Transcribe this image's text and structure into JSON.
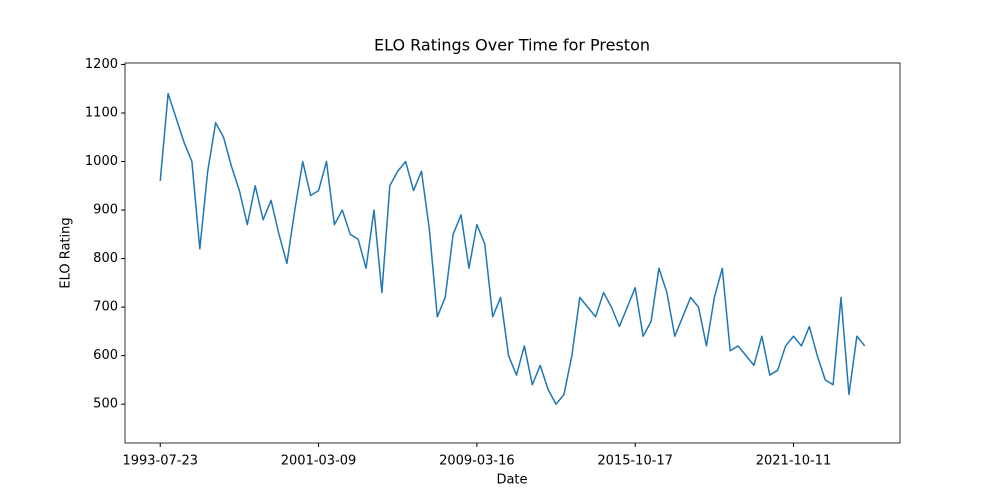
{
  "chart_data": {
    "type": "line",
    "title": "ELO Ratings Over Time for Preston",
    "x_label": "Date",
    "y_label": "ELO Rating",
    "categories": [
      "1993-07-23",
      null,
      null,
      null,
      null,
      null,
      null,
      null,
      null,
      null,
      null,
      null,
      null,
      null,
      null,
      null,
      null,
      null,
      null,
      null,
      "2001-03-09",
      null,
      null,
      null,
      null,
      null,
      null,
      null,
      null,
      null,
      null,
      null,
      null,
      null,
      null,
      null,
      null,
      null,
      null,
      null,
      "2009-03-16",
      null,
      null,
      null,
      null,
      null,
      null,
      null,
      null,
      null,
      null,
      null,
      null,
      null,
      null,
      null,
      null,
      null,
      null,
      null,
      "2015-10-17",
      null,
      null,
      null,
      null,
      null,
      null,
      null,
      null,
      null,
      null,
      null,
      null,
      null,
      null,
      null,
      null,
      null,
      null,
      null,
      "2021-10-11",
      null,
      null,
      null,
      null,
      null,
      null,
      null,
      null,
      null
    ],
    "values": [
      960,
      1140,
      1090,
      1040,
      1000,
      820,
      980,
      1080,
      1050,
      990,
      940,
      870,
      950,
      880,
      920,
      850,
      790,
      900,
      1000,
      930,
      940,
      1000,
      870,
      900,
      850,
      840,
      780,
      900,
      730,
      950,
      980,
      1000,
      940,
      980,
      860,
      680,
      720,
      850,
      890,
      780,
      870,
      830,
      680,
      720,
      600,
      560,
      620,
      540,
      580,
      530,
      500,
      520,
      600,
      720,
      700,
      680,
      730,
      700,
      660,
      700,
      740,
      640,
      670,
      780,
      730,
      640,
      680,
      720,
      700,
      620,
      720,
      780,
      610,
      620,
      600,
      580,
      640,
      560,
      570,
      620,
      640,
      620,
      660,
      600,
      550,
      540,
      720,
      520,
      640,
      620
    ],
    "color": "#1f77b4",
    "xlim": [
      -4.45,
      93.45
    ],
    "ylim": [
      420,
      1203
    ],
    "yticks": [
      500,
      600,
      700,
      800,
      900,
      1000,
      1100,
      1200
    ]
  }
}
